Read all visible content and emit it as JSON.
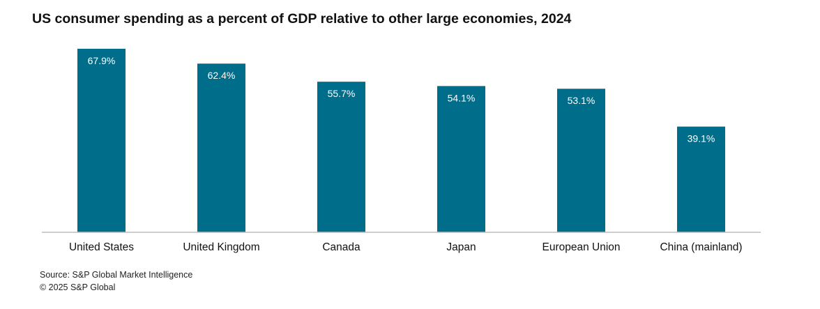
{
  "chart_data": {
    "type": "bar",
    "title": "US consumer spending as a percent of GDP relative to other large economies, 2024",
    "categories": [
      "United States",
      "United Kingdom",
      "Canada",
      "Japan",
      "European Union",
      "China (mainland)"
    ],
    "values": [
      67.9,
      62.4,
      55.7,
      54.1,
      53.1,
      39.1
    ],
    "data_labels": [
      "67.9%",
      "62.4%",
      "55.7%",
      "54.1%",
      "53.1%",
      "39.1%"
    ],
    "unit": "%",
    "xlabel": "",
    "ylabel": "",
    "ylim": [
      0,
      70
    ],
    "grid": false,
    "legend": "none",
    "bar_color": "#006e8a",
    "label_color": "#ffffff"
  },
  "footer": {
    "source": "Source: S&P Global Market Intelligence",
    "copyright": "© 2025 S&P Global"
  }
}
